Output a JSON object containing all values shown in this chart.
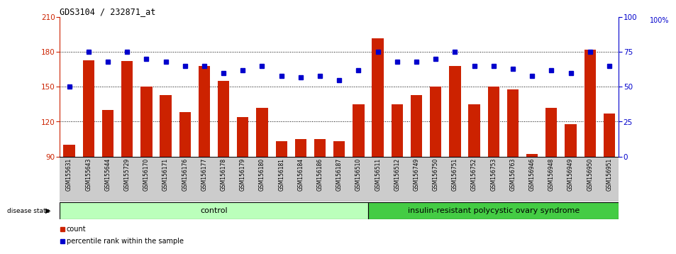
{
  "title": "GDS3104 / 232871_at",
  "samples": [
    "GSM155631",
    "GSM155643",
    "GSM155644",
    "GSM155729",
    "GSM156170",
    "GSM156171",
    "GSM156176",
    "GSM156177",
    "GSM156178",
    "GSM156179",
    "GSM156180",
    "GSM156181",
    "GSM156184",
    "GSM156186",
    "GSM156187",
    "GSM156510",
    "GSM156511",
    "GSM156512",
    "GSM156749",
    "GSM156750",
    "GSM156751",
    "GSM156752",
    "GSM156753",
    "GSM156763",
    "GSM156946",
    "GSM156948",
    "GSM156949",
    "GSM156950",
    "GSM156951"
  ],
  "bar_values": [
    100,
    173,
    130,
    172,
    150,
    143,
    128,
    168,
    155,
    124,
    132,
    103,
    105,
    105,
    103,
    135,
    192,
    135,
    143,
    150,
    168,
    135,
    150,
    148,
    92,
    132,
    118,
    182,
    127
  ],
  "percentile_values": [
    50,
    75,
    68,
    75,
    70,
    68,
    65,
    65,
    60,
    62,
    65,
    58,
    57,
    58,
    55,
    62,
    75,
    68,
    68,
    70,
    75,
    65,
    65,
    63,
    58,
    62,
    60,
    75,
    65
  ],
  "bar_color": "#cc2200",
  "square_color": "#0000cc",
  "ymin": 90,
  "ymax": 210,
  "yticks": [
    90,
    120,
    150,
    180,
    210
  ],
  "y2min": 0,
  "y2max": 100,
  "y2ticks": [
    0,
    25,
    50,
    75,
    100
  ],
  "control_count": 16,
  "disease_count": 13,
  "control_label": "control",
  "disease_label": "insulin-resistant polycystic ovary syndrome",
  "disease_state_label": "disease state",
  "legend_bar": "count",
  "legend_square": "percentile rank within the sample",
  "control_color": "#bbffbb",
  "disease_color": "#44cc44",
  "xlabel_area_color": "#cccccc",
  "dotted_grid": [
    120,
    150,
    180
  ]
}
